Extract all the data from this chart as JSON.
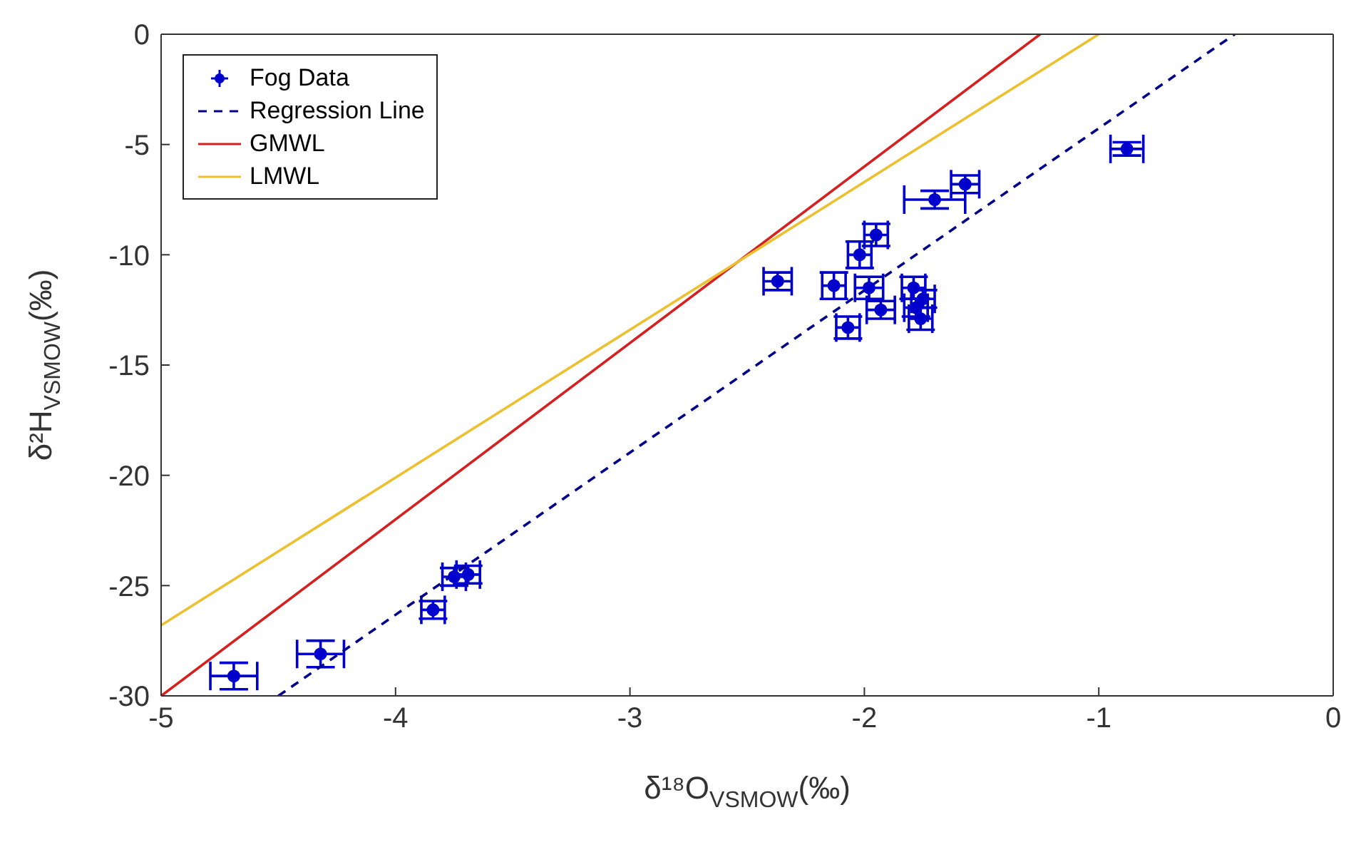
{
  "chart_data": {
    "type": "scatter",
    "xlabel": "δ¹⁸O$_{VSMOW}$(‰)",
    "ylabel": "δ²H$_{VSMOW}$(‰)",
    "xlim": [
      -5,
      0
    ],
    "ylim": [
      -30,
      0
    ],
    "xticks": [
      -5,
      -4,
      -3,
      -2,
      -1,
      0
    ],
    "yticks": [
      -30,
      -25,
      -20,
      -15,
      -10,
      -5,
      0
    ],
    "grid": false,
    "legend": "top left",
    "series": [
      {
        "name": "Fog Data",
        "color": "#0000cc",
        "marker": "circle",
        "x": [
          -4.69,
          -4.32,
          -3.84,
          -3.75,
          -3.69,
          -2.37,
          -2.13,
          -2.02,
          -1.95,
          -1.98,
          -1.93,
          -2.07,
          -1.79,
          -1.75,
          -1.78,
          -1.76,
          -1.7,
          -1.57,
          -0.88
        ],
        "values": [
          -29.1,
          -28.1,
          -26.1,
          -24.6,
          -24.5,
          -11.2,
          -11.4,
          -10.0,
          -9.1,
          -11.5,
          -12.5,
          -13.3,
          -11.5,
          -12.0,
          -12.4,
          -12.9,
          -7.5,
          -6.8,
          -5.2
        ],
        "errors": [
          0.6,
          0.6,
          0.4,
          0.4,
          0.4,
          0.4,
          0.6,
          0.6,
          0.5,
          0.5,
          0.4,
          0.5,
          0.5,
          0.4,
          0.4,
          0.5,
          0.4,
          0.4,
          0.3
        ],
        "xerrors": [
          0.1,
          0.1,
          0.05,
          0.05,
          0.05,
          0.06,
          0.05,
          0.05,
          0.05,
          0.06,
          0.06,
          0.05,
          0.05,
          0.05,
          0.05,
          0.05,
          0.13,
          0.06,
          0.07
        ]
      },
      {
        "name": "Regression Line",
        "type": "line",
        "color": "#00008b",
        "line_style": "dashed",
        "x": [
          -4.5,
          -0.42
        ],
        "values": [
          -30,
          0
        ]
      },
      {
        "name": "GMWL",
        "type": "line",
        "color": "#d62020",
        "line_style": "solid",
        "x": [
          -5,
          -1.25
        ],
        "values": [
          -30,
          0
        ]
      },
      {
        "name": "LMWL",
        "type": "line",
        "color": "#edc030",
        "line_style": "solid",
        "x": [
          -5,
          -1
        ],
        "values": [
          -26.8,
          0
        ]
      }
    ]
  }
}
